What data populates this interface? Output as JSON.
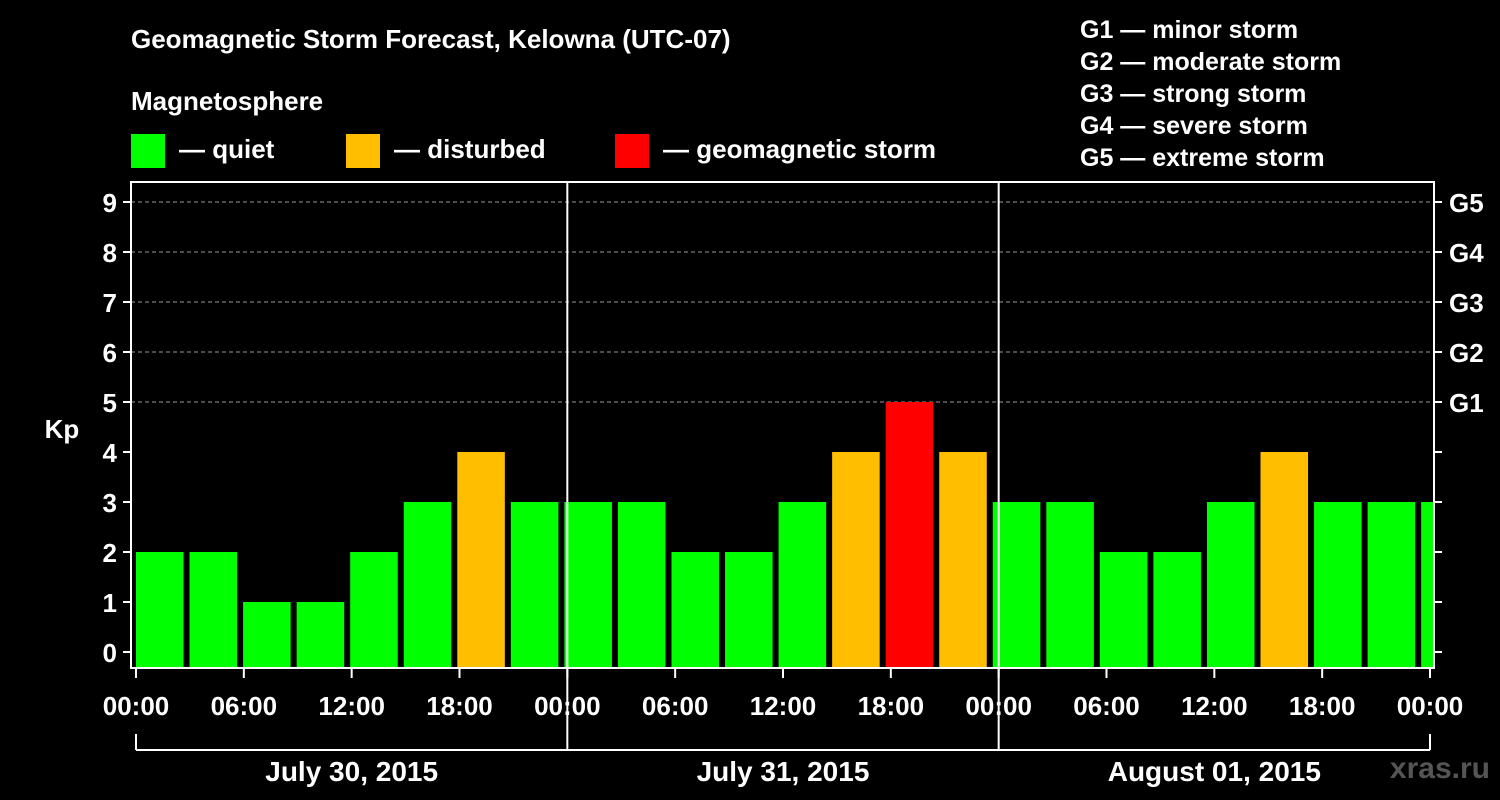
{
  "title": "Geomagnetic Storm Forecast, Kelowna (UTC-07)",
  "magnetosphere_label": "Magnetosphere",
  "legend": [
    {
      "label": "— quiet",
      "color": "#00ff00"
    },
    {
      "label": "— disturbed",
      "color": "#ffbf00"
    },
    {
      "label": "— geomagnetic storm",
      "color": "#ff0000"
    }
  ],
  "g_scale": [
    "G1 — minor storm",
    "G2 — moderate storm",
    "G3 — strong storm",
    "G4 — severe storm",
    "G5 — extreme storm"
  ],
  "watermark": "xras.ru",
  "chart_data": {
    "type": "bar",
    "title": "Geomagnetic Storm Forecast, Kelowna (UTC-07)",
    "ylabel": "Kp",
    "ylim": [
      0,
      9
    ],
    "yticks": [
      "0",
      "1",
      "2",
      "3",
      "4",
      "5",
      "6",
      "7",
      "8",
      "9"
    ],
    "right_ticks": [
      {
        "value": 5,
        "label": "G1"
      },
      {
        "value": 6,
        "label": "G2"
      },
      {
        "value": 7,
        "label": "G3"
      },
      {
        "value": 8,
        "label": "G4"
      },
      {
        "value": 9,
        "label": "G5"
      }
    ],
    "x_hours_total": 72,
    "x_start_hour": -1,
    "x_tick_labels": [
      "00:00",
      "06:00",
      "12:00",
      "18:00",
      "00:00",
      "06:00",
      "12:00",
      "18:00",
      "00:00",
      "06:00",
      "12:00",
      "18:00",
      "00:00"
    ],
    "days": [
      "July 30, 2015",
      "July 31, 2015",
      "August 01, 2015"
    ],
    "colors": {
      "quiet": "#00ff00",
      "disturbed": "#ffbf00",
      "storm": "#ff0000"
    },
    "bars": [
      {
        "start": -1,
        "end": 2,
        "kp": 2,
        "status": "quiet"
      },
      {
        "start": 2,
        "end": 5,
        "kp": 2,
        "status": "quiet"
      },
      {
        "start": 5,
        "end": 8,
        "kp": 1,
        "status": "quiet"
      },
      {
        "start": 8,
        "end": 11,
        "kp": 1,
        "status": "quiet"
      },
      {
        "start": 11,
        "end": 14,
        "kp": 2,
        "status": "quiet"
      },
      {
        "start": 14,
        "end": 17,
        "kp": 3,
        "status": "quiet"
      },
      {
        "start": 17,
        "end": 20,
        "kp": 4,
        "status": "disturbed"
      },
      {
        "start": 20,
        "end": 23,
        "kp": 3,
        "status": "quiet"
      },
      {
        "start": 23,
        "end": 26,
        "kp": 3,
        "status": "quiet"
      },
      {
        "start": 26,
        "end": 29,
        "kp": 3,
        "status": "quiet"
      },
      {
        "start": 29,
        "end": 32,
        "kp": 2,
        "status": "quiet"
      },
      {
        "start": 32,
        "end": 35,
        "kp": 2,
        "status": "quiet"
      },
      {
        "start": 35,
        "end": 38,
        "kp": 3,
        "status": "quiet"
      },
      {
        "start": 38,
        "end": 41,
        "kp": 4,
        "status": "disturbed"
      },
      {
        "start": 41,
        "end": 44,
        "kp": 5,
        "status": "storm"
      },
      {
        "start": 44,
        "end": 47,
        "kp": 4,
        "status": "disturbed"
      },
      {
        "start": 47,
        "end": 50,
        "kp": 3,
        "status": "quiet"
      },
      {
        "start": 50,
        "end": 53,
        "kp": 3,
        "status": "quiet"
      },
      {
        "start": 53,
        "end": 56,
        "kp": 2,
        "status": "quiet"
      },
      {
        "start": 56,
        "end": 59,
        "kp": 2,
        "status": "quiet"
      },
      {
        "start": 59,
        "end": 62,
        "kp": 3,
        "status": "quiet"
      },
      {
        "start": 62,
        "end": 65,
        "kp": 4,
        "status": "disturbed"
      },
      {
        "start": 65,
        "end": 68,
        "kp": 3,
        "status": "quiet"
      },
      {
        "start": 68,
        "end": 71,
        "kp": 3,
        "status": "quiet"
      },
      {
        "start": 71,
        "end": 72,
        "kp": 3,
        "status": "quiet"
      }
    ]
  }
}
